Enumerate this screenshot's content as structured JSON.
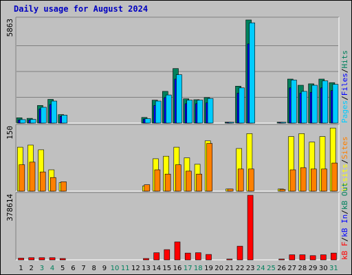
{
  "chart_data": {
    "type": "bar",
    "title": "Daily usage for August 2024",
    "days": [
      "1",
      "2",
      "3",
      "4",
      "5",
      "6",
      "7",
      "8",
      "9",
      "10",
      "11",
      "12",
      "13",
      "14",
      "15",
      "16",
      "17",
      "18",
      "19",
      "20",
      "21",
      "22",
      "23",
      "24",
      "25",
      "26",
      "27",
      "28",
      "29",
      "30",
      "31"
    ],
    "weekend_days": [
      "3",
      "4",
      "10",
      "11",
      "17",
      "18",
      "24",
      "25",
      "31"
    ],
    "colors": {
      "title": "#0000c0",
      "weekday_label": "#000000",
      "weekend_label": "#00805c",
      "background": "#c0c0c0",
      "plot_background": "#c0c0c0",
      "gridline": "#808080",
      "hits": "#00ccff",
      "files": "#0000ff",
      "pages": "#00805c",
      "visits": "#ffff00",
      "sites": "#ff8000",
      "kbin": "#0000ff",
      "kbout": "#00805c",
      "kbf": "#ff0000"
    },
    "panels": [
      {
        "id": "hits-files-pages",
        "max_label": "5863",
        "ylim": [
          0,
          5863
        ],
        "legend": [
          {
            "label": "Pages",
            "color": "#00ccff"
          },
          {
            "label": "/",
            "color": "#000000"
          },
          {
            "label": "Files",
            "color": "#0000ff"
          },
          {
            "label": "/",
            "color": "#000000"
          },
          {
            "label": "Hits",
            "color": "#00805c"
          }
        ],
        "series": [
          {
            "name": "Hits",
            "color": "#00805c",
            "values": [
              300,
              270,
              1000,
              1350,
              480,
              0,
              0,
              0,
              0,
              0,
              0,
              0,
              320,
              1300,
              1800,
              3100,
              1380,
              1330,
              1450,
              0,
              50,
              2100,
              5863,
              0,
              0,
              50,
              2500,
              2150,
              2230,
              2500,
              2300
            ]
          },
          {
            "name": "Files",
            "color": "#0000ff",
            "values": [
              180,
              180,
              800,
              1050,
              380,
              0,
              0,
              0,
              0,
              0,
              0,
              0,
              230,
              1000,
              1450,
              2500,
              1100,
              1100,
              1150,
              0,
              40,
              1700,
              4500,
              0,
              0,
              40,
              2000,
              1700,
              1750,
              2000,
              1850
            ]
          },
          {
            "name": "Pages",
            "color": "#00ccff",
            "values": [
              200,
              210,
              900,
              1250,
              450,
              0,
              0,
              0,
              0,
              0,
              0,
              0,
              250,
              1250,
              1600,
              2750,
              1300,
              1300,
              1400,
              0,
              45,
              2000,
              5700,
              0,
              0,
              45,
              2450,
              1800,
              2150,
              2400,
              2200
            ]
          }
        ]
      },
      {
        "id": "visits-sites",
        "max_label": "150",
        "ylim": [
          0,
          150
        ],
        "legend": [
          {
            "label": "Visits",
            "color": "#ffff00"
          },
          {
            "label": "/",
            "color": "#000000"
          },
          {
            "label": "Sites",
            "color": "#ff8000"
          }
        ],
        "series": [
          {
            "name": "Visits",
            "color": "#ffff00",
            "values": [
              103,
              108,
              97,
              50,
              20,
              0,
              0,
              0,
              0,
              0,
              0,
              0,
              12,
              76,
              82,
              103,
              78,
              63,
              118,
              0,
              5,
              100,
              135,
              0,
              0,
              5,
              128,
              135,
              115,
              128,
              148
            ]
          },
          {
            "name": "Sites",
            "color": "#ff8000",
            "values": [
              62,
              68,
              45,
              32,
              22,
              0,
              0,
              0,
              0,
              0,
              0,
              0,
              15,
              50,
              40,
              62,
              47,
              40,
              112,
              0,
              5,
              52,
              52,
              0,
              0,
              4,
              50,
              55,
              52,
              52,
              66
            ]
          }
        ]
      },
      {
        "id": "kb",
        "max_label": "378614",
        "ylim": [
          0,
          378614
        ],
        "legend": [
          {
            "label": "kB F",
            "color": "#ff0000"
          },
          {
            "label": "/",
            "color": "#000000"
          },
          {
            "label": "kB In",
            "color": "#0000ff"
          },
          {
            "label": "/",
            "color": "#000000"
          },
          {
            "label": "kB Out",
            "color": "#00805c"
          }
        ],
        "series": [
          {
            "name": "kB F",
            "color": "#ff0000",
            "values": [
              10000,
              13000,
              13000,
              13000,
              8000,
              0,
              0,
              0,
              0,
              0,
              0,
              0,
              8000,
              42000,
              60000,
              105000,
              40000,
              42000,
              32000,
              0,
              5000,
              80000,
              378614,
              0,
              0,
              5000,
              30000,
              30000,
              25000,
              30000,
              40000
            ]
          }
        ]
      }
    ]
  }
}
